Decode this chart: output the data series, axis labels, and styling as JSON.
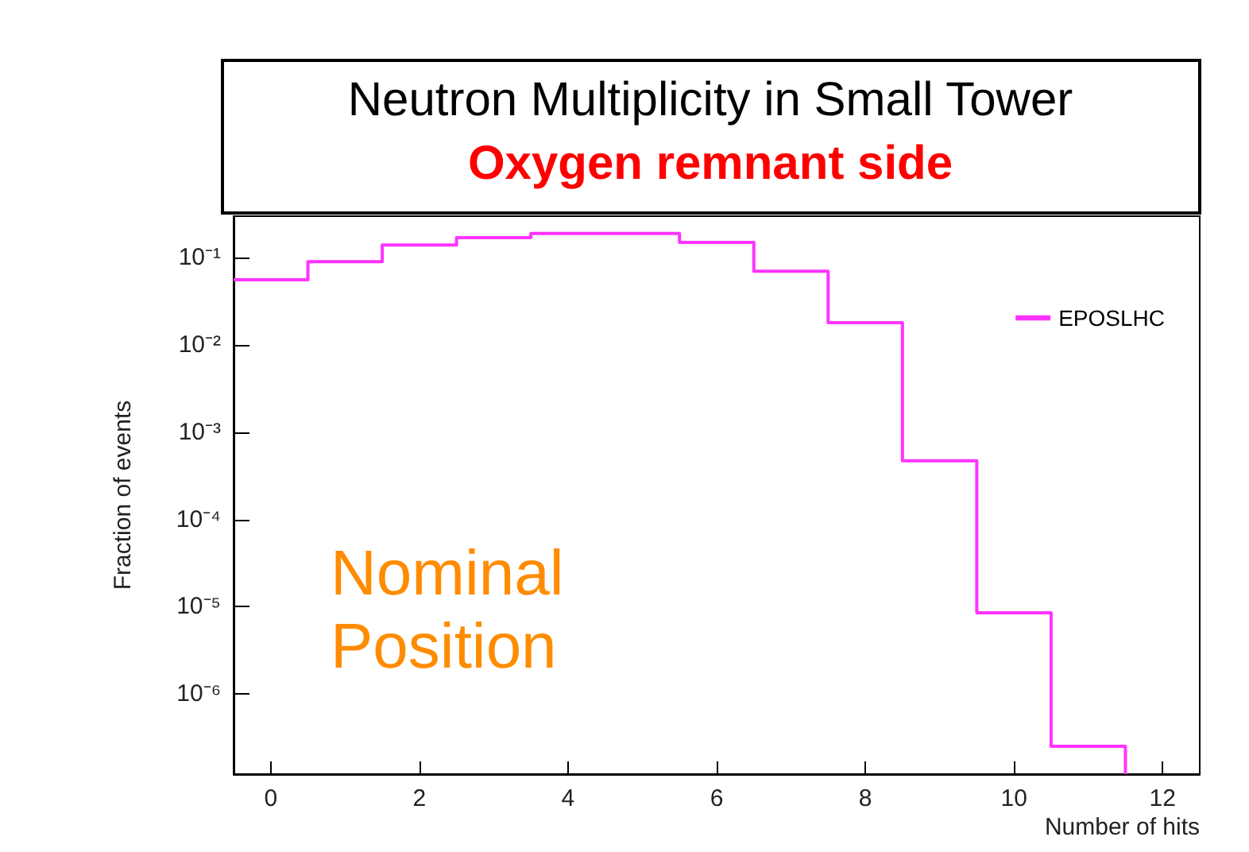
{
  "chart_data": {
    "type": "histogram",
    "title": "Neutron Multiplicity in Small Tower",
    "subtitle": "Oxygen remnant side",
    "xlabel": "Number of hits",
    "ylabel": "Fraction of events",
    "annotations": [
      "Nominal Position"
    ],
    "bins": [
      -0.5,
      0.5,
      1.5,
      2.5,
      3.5,
      4.5,
      5.5,
      6.5,
      7.5,
      8.5,
      9.5,
      10.5,
      11.5
    ],
    "series": [
      {
        "name": "EPOSLHC",
        "color": "#ff33ff",
        "values": [
          0.056,
          0.09,
          0.14,
          0.17,
          0.19,
          0.19,
          0.15,
          0.07,
          0.018,
          0.00047,
          8.5e-06,
          2.5e-07
        ]
      }
    ],
    "xlim": [
      -0.5,
      12.5
    ],
    "xticks": [
      0,
      2,
      4,
      6,
      8,
      10,
      12
    ],
    "ylim": [
      1.2e-07,
      0.3
    ],
    "yticks": [
      {
        "value": 1e-06,
        "label": "10⁻⁶"
      },
      {
        "value": 1e-05,
        "label": "10⁻⁵"
      },
      {
        "value": 0.0001,
        "label": "10⁻⁴"
      },
      {
        "value": 0.001,
        "label": "10⁻³"
      },
      {
        "value": 0.01,
        "label": "10⁻²"
      },
      {
        "value": 0.1,
        "label": "10⁻¹"
      }
    ],
    "log": "y",
    "legend": "top right",
    "grid": false,
    "marker": "none"
  }
}
